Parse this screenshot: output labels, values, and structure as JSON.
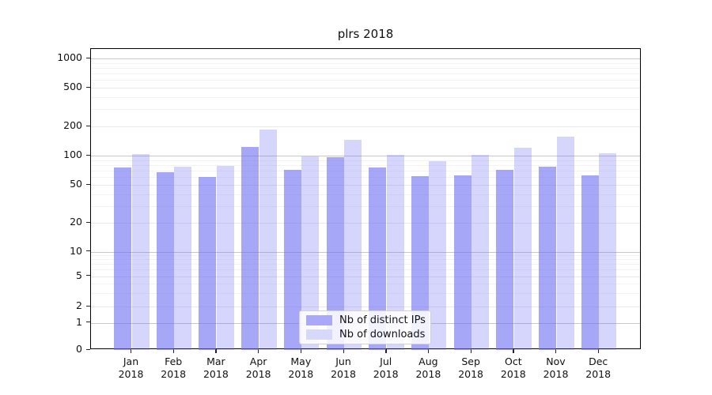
{
  "chart_data": {
    "type": "bar",
    "title": "plrs 2018",
    "categories": [
      "Jan 2018",
      "Feb 2018",
      "Mar 2018",
      "Apr 2018",
      "May 2018",
      "Jun 2018",
      "Jul 2018",
      "Aug 2018",
      "Sep 2018",
      "Oct 2018",
      "Nov 2018",
      "Dec 2018"
    ],
    "series": [
      {
        "name": "Nb of distinct IPs",
        "values": [
          75,
          67,
          60,
          123,
          71,
          97,
          75,
          62,
          63,
          71,
          77,
          63
        ],
        "color": "rgba(108,108,243,0.60)",
        "legend_swatch": "#a9a9f7"
      },
      {
        "name": "Nb of downloads",
        "values": [
          103,
          77,
          79,
          185,
          98,
          146,
          101,
          87,
          102,
          120,
          158,
          106
        ],
        "color": "rgba(108,108,243,0.28)",
        "legend_swatch": "#d8d8fb"
      }
    ],
    "yscale": "symlog",
    "ylim": [
      0,
      1300
    ],
    "yticks": [
      1000,
      500,
      200,
      100,
      50,
      20,
      10,
      5,
      2,
      1,
      0
    ],
    "yticks_minor": [
      3,
      4,
      6,
      7,
      8,
      9,
      30,
      40,
      60,
      70,
      80,
      90,
      300,
      400,
      600,
      700,
      800,
      900
    ],
    "yticks_emphasized": [
      1,
      10,
      100,
      1000
    ],
    "xlabel": "",
    "ylabel": "",
    "grid": true,
    "legend_position": "lower center",
    "plot_background": "#ffffff"
  }
}
